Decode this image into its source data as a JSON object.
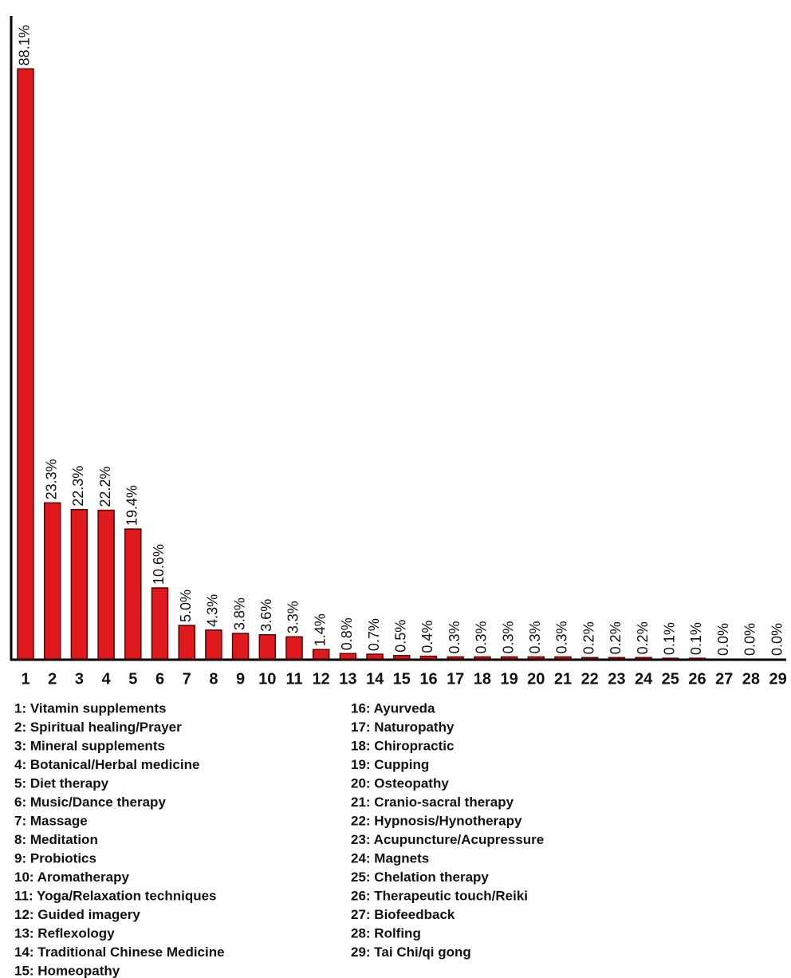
{
  "chart_data": {
    "type": "bar",
    "categories": [
      "1",
      "2",
      "3",
      "4",
      "5",
      "6",
      "7",
      "8",
      "9",
      "10",
      "11",
      "12",
      "13",
      "14",
      "15",
      "16",
      "17",
      "18",
      "19",
      "20",
      "21",
      "22",
      "23",
      "24",
      "25",
      "26",
      "27",
      "28",
      "29"
    ],
    "values": [
      88.1,
      23.3,
      22.3,
      22.2,
      19.4,
      10.6,
      5.0,
      4.3,
      3.8,
      3.6,
      3.3,
      1.4,
      0.8,
      0.7,
      0.5,
      0.4,
      0.3,
      0.3,
      0.3,
      0.3,
      0.3,
      0.2,
      0.2,
      0.2,
      0.1,
      0.1,
      0.0,
      0.0,
      0.0
    ],
    "value_labels": [
      "88.1%",
      "23.3%",
      "22.3%",
      "22.2%",
      "19.4%",
      "10.6%",
      "5.0%",
      "4.3%",
      "3.8%",
      "3.6%",
      "3.3%",
      "1.4%",
      "0.8%",
      "0.7%",
      "0.5%",
      "0.4%",
      "0.3%",
      "0.3%",
      "0.3%",
      "0.3%",
      "0.3%",
      "0.2%",
      "0.2%",
      "0.2%",
      "0.1%",
      "0.1%",
      "0.0%",
      "0.0%",
      "0.0%"
    ],
    "color": "#e0191f",
    "ylim": [
      0,
      96
    ],
    "legend_items": [
      "1: Vitamin supplements",
      "2: Spiritual healing/Prayer",
      "3: Mineral supplements",
      "4: Botanical/Herbal medicine",
      "5: Diet therapy",
      "6: Music/Dance therapy",
      "7: Massage",
      "8: Meditation",
      "9: Probiotics",
      "10: Aromatherapy",
      "11: Yoga/Relaxation techniques",
      "12: Guided imagery",
      "13: Reflexology",
      "14: Traditional Chinese Medicine",
      "15: Homeopathy",
      "16: Ayurveda",
      "17: Naturopathy",
      "18: Chiropractic",
      "19: Cupping",
      "20: Osteopathy",
      "21: Cranio-sacral therapy",
      "22: Hypnosis/Hynotherapy",
      "23: Acupuncture/Acupressure",
      "24: Magnets",
      "25: Chelation therapy",
      "26: Therapeutic touch/Reiki",
      "27: Biofeedback",
      "28: Rolfing",
      "29: Tai Chi/qi gong"
    ]
  }
}
